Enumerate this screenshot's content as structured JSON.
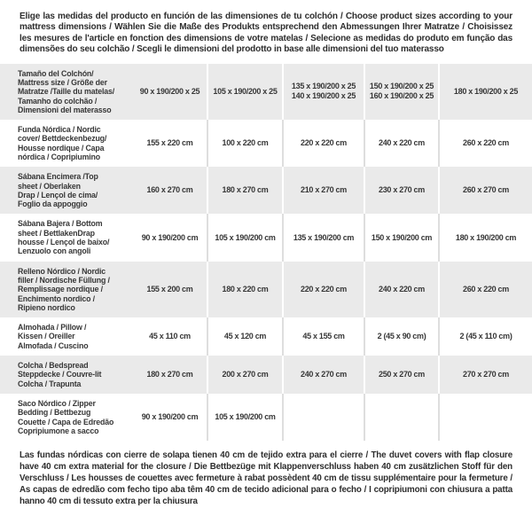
{
  "intro": "Elige las medidas del producto en función de las dimensiones de tu colchón / Choose product sizes according to your mattress dimensions / Wählen Sie die Maße des Produkts entsprechend den Abmessungen Ihrer Matratze / Choisissez les mesures de l'article en fonction des dimensions de votre matelas / Selecione as medidas do produto em função das dimensões do seu colchão / Scegli le dimensioni del prodotto in base alle dimensioni del tuo materasso",
  "footnote": "Las fundas nórdicas con cierre de solapa tienen 40 cm de tejido extra para el cierre  /  The duvet covers with flap closure have 40 cm extra material for the closure / Die Bettbezüge mit Klappenverschluss haben 40 cm zusätzlichen Stoff für den Verschluss / Les housses de couettes avec fermeture à rabat possèdent 40 cm de tissu supplémentaire pour la fermeture / As capas de edredão com fecho tipo aba têm 40 cm de tecido adicional para o fecho / I copripiumoni con chiusura a patta hanno 40 cm di tessuto extra per la chiusura",
  "colors": {
    "stripe": "#eaeaea",
    "text": "#373737"
  },
  "table": {
    "rows": [
      {
        "label": "Tamaño del Colchón/\nMattress size / Größe der\nMatratze /Taille du matelas/\nTamanho do colchão /\nDimensioni del materasso",
        "values": [
          "90 x 190/200 x 25",
          "105 x 190/200 x 25",
          "135 x 190/200 x 25\n140 x 190/200 x 25",
          "150 x 190/200 x 25\n160 x 190/200 x 25",
          "180 x 190/200 x 25"
        ]
      },
      {
        "label": "Funda Nórdica /  Nordic\ncover/ Bettdeckenbezug/\nHousse nordique  / Capa\nnórdica / Copripiumino",
        "values": [
          "155 x 220 cm",
          "100 x 220 cm",
          "220 x 220 cm",
          "240 x 220 cm",
          "260 x 220 cm"
        ]
      },
      {
        "label": "Sábana Encimera /Top\nsheet / Oberlaken\nDrap / Lençol de cima/\nFoglio da appoggio",
        "values": [
          "160 x 270 cm",
          "180 x 270 cm",
          "210 x 270 cm",
          "230 x 270 cm",
          "260 x 270 cm"
        ]
      },
      {
        "label": "Sábana Bajera / Bottom\nsheet / BettlakenDrap\nhousse / Lençol de baixo/\nLenzuolo con angoli",
        "values": [
          "90 x 190/200 cm",
          "105 x 190/200 cm",
          "135 x 190/200 cm",
          "150 x 190/200 cm",
          "180 x 190/200 cm"
        ]
      },
      {
        "label": "Relleno Nórdico / Nordic\nfiller / Nordische Füllung /\nRemplissage nordique /\nEnchimento nordico /\nRipieno nordico",
        "values": [
          "155 x 200 cm",
          "180 x 220 cm",
          "220 x 220 cm",
          "240 x 220 cm",
          "260 x 220 cm"
        ]
      },
      {
        "label": "Almohada  / Pillow /\nKissen / Oreiller\nAlmofada / Cuscino",
        "values": [
          "45 x 110 cm",
          "45 x 120 cm",
          "45 x 155 cm",
          "2 (45 x 90 cm)",
          "2 (45 x 110 cm)"
        ]
      },
      {
        "label": "Colcha / Bedspread\nSteppdecke / Couvre-lit\nColcha / Trapunta",
        "values": [
          "180 x 270 cm",
          "200 x 270 cm",
          "240 x 270 cm",
          "250 x 270 cm",
          "270 x 270 cm"
        ]
      },
      {
        "label": "Saco Nórdico / Zipper\nBedding / Bettbezug\nCouette  / Capa de Edredão\nCopripiumone a sacco",
        "values": [
          "90 x 190/200 cm",
          "105 x 190/200 cm",
          "",
          "",
          ""
        ]
      }
    ]
  }
}
